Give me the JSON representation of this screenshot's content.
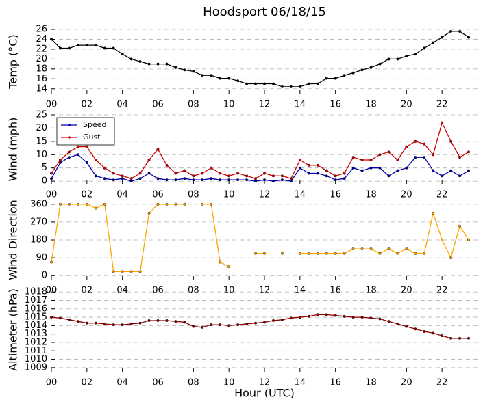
{
  "chart_data": [
    {
      "type": "line",
      "title": "Hoodsport 06/18/15",
      "ylabel": "Temp (°C)",
      "x": [
        0,
        0.5,
        1,
        1.5,
        2,
        2.5,
        3,
        3.5,
        4,
        4.5,
        5,
        5.5,
        6,
        6.5,
        7,
        7.5,
        8,
        8.5,
        9,
        9.5,
        10,
        10.5,
        11,
        11.5,
        12,
        12.5,
        13,
        13.5,
        14,
        14.5,
        15,
        15.5,
        16,
        16.5,
        17,
        17.5,
        18,
        18.5,
        19,
        19.5,
        20,
        20.5,
        21,
        21.5,
        22,
        22.5,
        23,
        23.5
      ],
      "series": [
        {
          "color": "#000000",
          "values": [
            24,
            22.2,
            22.2,
            22.8,
            22.8,
            22.8,
            22.2,
            22.2,
            21,
            20,
            19.5,
            19,
            19,
            19,
            18.3,
            17.8,
            17.5,
            16.7,
            16.7,
            16.1,
            16.1,
            15.6,
            15,
            15,
            15,
            15,
            14.4,
            14.4,
            14.4,
            15,
            15,
            16.1,
            16.1,
            16.7,
            17.2,
            17.8,
            18.3,
            19,
            20,
            20,
            20.6,
            21,
            22.2,
            23.3,
            24.4,
            25.6,
            25.6,
            24.4
          ]
        }
      ],
      "xlim": [
        0,
        24
      ],
      "xticks": [
        {
          "value": 0,
          "label": "00"
        },
        {
          "value": 2,
          "label": "02"
        },
        {
          "value": 4,
          "label": "04"
        },
        {
          "value": 6,
          "label": "06"
        },
        {
          "value": 8,
          "label": "08"
        },
        {
          "value": 10,
          "label": "10"
        },
        {
          "value": 12,
          "label": "12"
        },
        {
          "value": 14,
          "label": "14"
        },
        {
          "value": 16,
          "label": "16"
        },
        {
          "value": 18,
          "label": "18"
        },
        {
          "value": 20,
          "label": "20"
        },
        {
          "value": 22,
          "label": "22"
        }
      ],
      "ylim": [
        13,
        26
      ],
      "yticks": [
        14,
        16,
        18,
        20,
        22,
        24,
        26
      ],
      "grid": true
    },
    {
      "type": "line",
      "ylabel": "Wind (mph)",
      "legend": "upper left",
      "x": [
        0,
        0.5,
        1,
        1.5,
        2,
        2.5,
        3,
        3.5,
        4,
        4.5,
        5,
        5.5,
        6,
        6.5,
        7,
        7.5,
        8,
        8.5,
        9,
        9.5,
        10,
        10.5,
        11,
        11.5,
        12,
        12.5,
        13,
        13.5,
        14,
        14.5,
        15,
        15.5,
        16,
        16.5,
        17,
        17.5,
        18,
        18.5,
        19,
        19.5,
        20,
        20.5,
        21,
        21.5,
        22,
        22.5,
        23,
        23.5
      ],
      "series": [
        {
          "name": "Speed",
          "color": "#0000aa",
          "values": [
            1,
            7,
            9,
            10,
            7,
            2,
            1,
            0.5,
            1,
            0,
            1,
            3,
            1,
            0.5,
            0.5,
            1,
            0.5,
            0.5,
            1,
            0.5,
            0.5,
            0.5,
            0.5,
            0,
            0.5,
            0,
            0.5,
            0,
            5,
            3,
            3,
            2,
            0.5,
            1,
            5,
            4,
            5,
            5,
            2,
            4,
            5,
            9,
            9,
            4,
            2,
            4,
            2,
            4
          ]
        },
        {
          "name": "Gust",
          "color": "#cc0000",
          "values": [
            3,
            8,
            11,
            13,
            13,
            8,
            5,
            3,
            2,
            1,
            3,
            8,
            12,
            6,
            3,
            4,
            2,
            3,
            5,
            3,
            2,
            3,
            2,
            1,
            3,
            2,
            2,
            1,
            8,
            6,
            6,
            4,
            2,
            3,
            9,
            8,
            8,
            10,
            11,
            8,
            13,
            15,
            14,
            10,
            22,
            15,
            9,
            11
          ]
        }
      ],
      "xlim": [
        0,
        24
      ],
      "xticks": [
        {
          "value": 0,
          "label": "00"
        },
        {
          "value": 2,
          "label": "02"
        },
        {
          "value": 4,
          "label": "04"
        },
        {
          "value": 6,
          "label": "06"
        },
        {
          "value": 8,
          "label": "08"
        },
        {
          "value": 10,
          "label": "10"
        },
        {
          "value": 12,
          "label": "12"
        },
        {
          "value": 14,
          "label": "14"
        },
        {
          "value": 16,
          "label": "16"
        },
        {
          "value": 18,
          "label": "18"
        },
        {
          "value": 20,
          "label": "20"
        },
        {
          "value": 22,
          "label": "22"
        }
      ],
      "ylim": [
        -1,
        25
      ],
      "yticks": [
        0,
        5,
        10,
        15,
        20,
        25
      ],
      "grid": true
    },
    {
      "type": "line",
      "ylabel": "Wind Direction",
      "x": [
        0,
        0.5,
        1,
        1.5,
        2,
        2.5,
        3,
        3.5,
        4,
        4.5,
        5,
        5.5,
        6,
        6.5,
        7,
        7.5,
        8,
        8.5,
        9,
        9.5,
        10,
        10.5,
        11,
        11.5,
        12,
        12.5,
        13,
        13.5,
        14,
        14.5,
        15,
        15.5,
        16,
        16.5,
        17,
        17.5,
        18,
        18.5,
        19,
        19.5,
        20,
        20.5,
        21,
        21.5,
        22,
        22.5,
        23,
        23.5
      ],
      "series": [
        {
          "color": "#ffa500",
          "values": [
            68,
            360,
            360,
            360,
            360,
            340,
            360,
            20,
            20,
            20,
            20,
            315,
            360,
            360,
            360,
            360,
            null,
            360,
            360,
            68,
            45,
            null,
            null,
            112,
            112,
            null,
            112,
            null,
            112,
            112,
            112,
            112,
            112,
            112,
            135,
            135,
            135,
            112,
            135,
            112,
            135,
            112,
            112,
            315,
            180,
            90,
            250,
            180
          ]
        }
      ],
      "xlim": [
        0,
        24
      ],
      "xticks": [
        {
          "value": 0,
          "label": "00"
        },
        {
          "value": 2,
          "label": "02"
        },
        {
          "value": 4,
          "label": "04"
        },
        {
          "value": 6,
          "label": "06"
        },
        {
          "value": 8,
          "label": "08"
        },
        {
          "value": 10,
          "label": "10"
        },
        {
          "value": 12,
          "label": "12"
        },
        {
          "value": 14,
          "label": "14"
        },
        {
          "value": 16,
          "label": "16"
        },
        {
          "value": 18,
          "label": "18"
        },
        {
          "value": 20,
          "label": "20"
        },
        {
          "value": 22,
          "label": "22"
        }
      ],
      "ylim": [
        -20,
        380
      ],
      "yticks": [
        0,
        90,
        180,
        270,
        360
      ],
      "grid": true
    },
    {
      "type": "line",
      "ylabel": "Altimeter (hPa)",
      "xlabel": "Hour (UTC)",
      "x": [
        0,
        0.5,
        1,
        1.5,
        2,
        2.5,
        3,
        3.5,
        4,
        4.5,
        5,
        5.5,
        6,
        6.5,
        7,
        7.5,
        8,
        8.5,
        9,
        9.5,
        10,
        10.5,
        11,
        11.5,
        12,
        12.5,
        13,
        13.5,
        14,
        14.5,
        15,
        15.5,
        16,
        16.5,
        17,
        17.5,
        18,
        18.5,
        19,
        19.5,
        20,
        20.5,
        21,
        21.5,
        22,
        22.5,
        23,
        23.5
      ],
      "series": [
        {
          "color": "#8b0000",
          "values": [
            1015,
            1014.9,
            1014.7,
            1014.5,
            1014.3,
            1014.3,
            1014.2,
            1014.1,
            1014.1,
            1014.2,
            1014.3,
            1014.6,
            1014.6,
            1014.6,
            1014.5,
            1014.4,
            1013.9,
            1013.8,
            1014.1,
            1014.1,
            1014,
            1014.1,
            1014.2,
            1014.3,
            1014.4,
            1014.6,
            1014.7,
            1014.9,
            1015,
            1015.1,
            1015.3,
            1015.3,
            1015.2,
            1015.1,
            1015,
            1015,
            1014.9,
            1014.8,
            1014.5,
            1014.2,
            1013.9,
            1013.6,
            1013.3,
            1013.1,
            1012.8,
            1012.5,
            1012.5,
            1012.5
          ]
        }
      ],
      "xlim": [
        0,
        24
      ],
      "xticks": [
        {
          "value": 0,
          "label": "00"
        },
        {
          "value": 2,
          "label": "02"
        },
        {
          "value": 4,
          "label": "04"
        },
        {
          "value": 6,
          "label": "06"
        },
        {
          "value": 8,
          "label": "08"
        },
        {
          "value": 10,
          "label": "10"
        },
        {
          "value": 12,
          "label": "12"
        },
        {
          "value": 14,
          "label": "14"
        },
        {
          "value": 16,
          "label": "16"
        },
        {
          "value": 18,
          "label": "18"
        },
        {
          "value": 20,
          "label": "20"
        },
        {
          "value": 22,
          "label": "22"
        }
      ],
      "ylim": [
        1008.5,
        1018.5
      ],
      "yticks": [
        1009,
        1010,
        1011,
        1012,
        1013,
        1014,
        1015,
        1016,
        1017,
        1018
      ],
      "grid": true
    }
  ]
}
